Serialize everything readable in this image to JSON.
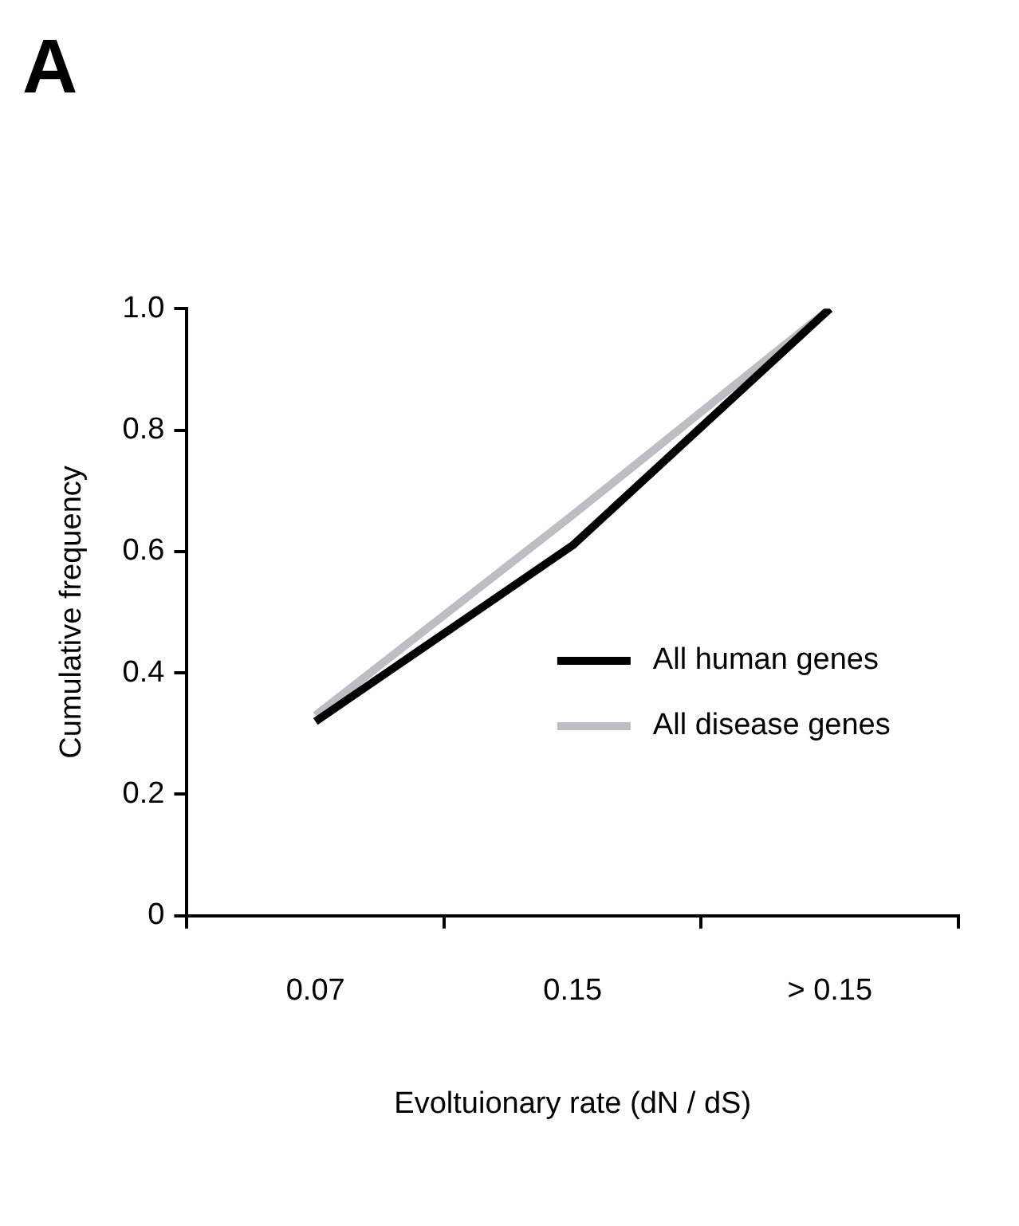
{
  "chart_data": {
    "type": "line",
    "title": "A",
    "xlabel": "Evoltuionary rate (dN / dS)",
    "ylabel": "Cumulative frequency",
    "categories": [
      "0.07",
      "0.15",
      "> 0.15"
    ],
    "ylim": [
      0,
      1
    ],
    "yticks": [
      0,
      0.2,
      0.4,
      0.6,
      0.8,
      {
        "value": 1,
        "label": "1.0"
      }
    ],
    "grid": false,
    "legend": "right",
    "series": [
      {
        "name": "All human genes",
        "color": "#000000",
        "values": [
          0.32,
          0.61,
          1.0
        ]
      },
      {
        "name": "All disease genes",
        "color": "#bdbdc4",
        "values": [
          0.33,
          0.66,
          1.0
        ]
      }
    ]
  }
}
